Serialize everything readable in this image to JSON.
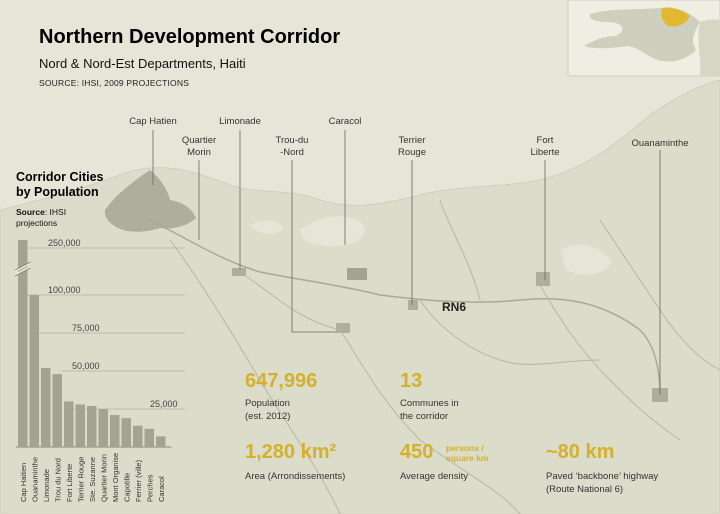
{
  "header": {
    "title": "Northern Development Corridor",
    "subtitle": "Nord & Nord-Est Departments, Haiti",
    "source": "SOURCE: IHSI, 2009 PROJECTIONS"
  },
  "map": {
    "road_label": "RN6",
    "cities": [
      {
        "id": "cap-haitien",
        "line1": "Cap Hatien",
        "line2": ""
      },
      {
        "id": "quartier-morin",
        "line1": "Quartier",
        "line2": "Morin"
      },
      {
        "id": "limonade",
        "line1": "Limonade",
        "line2": ""
      },
      {
        "id": "trou-du-nord",
        "line1": "Trou-du",
        "line2": "-Nord"
      },
      {
        "id": "caracol",
        "line1": "Caracol",
        "line2": ""
      },
      {
        "id": "terrier-rouge",
        "line1": "Terrier",
        "line2": "Rouge"
      },
      {
        "id": "fort-liberte",
        "line1": "Fort",
        "line2": "Liberte"
      },
      {
        "id": "ouanaminthe",
        "line1": "Ouanaminthe",
        "line2": ""
      }
    ],
    "colors": {
      "land": "#dcdccb",
      "sea": "#e6e6d8",
      "road": "#a9a99b",
      "urban": "#a3a391",
      "highlight": "#e2b830"
    }
  },
  "chart": {
    "title_line1": "Corridor Cities",
    "title_line2": "by Population",
    "source_label": "Source",
    "source_text": ": IHSI",
    "source_text2": "projections",
    "tick_labels": [
      "250,000",
      "100,000",
      "75,000",
      "50,000",
      "25,000"
    ]
  },
  "chart_data": {
    "type": "bar",
    "categories": [
      "Cap Haitien",
      "Ouanaminthe",
      "Limonade",
      "Trou du Nord",
      "Fort Liberte",
      "Terrier Rouge",
      "Ste. Suzanne",
      "Quartier Morin",
      "Mont Organise",
      "Capotille",
      "Ferrier (ville)",
      "Perches",
      "Caracol"
    ],
    "values": [
      265000,
      100000,
      52000,
      48000,
      30000,
      28000,
      27000,
      25000,
      21000,
      19000,
      14000,
      12000,
      7000
    ],
    "yticks": [
      25000,
      50000,
      75000,
      100000,
      250000
    ],
    "axis_break": true,
    "color": "#a3a391"
  },
  "stats": [
    {
      "id": "population",
      "value": "647,996",
      "line1": "Population",
      "line2": "(est. 2012)"
    },
    {
      "id": "communes",
      "value": "13",
      "line1": "Communes in",
      "line2": "the corridor"
    },
    {
      "id": "area",
      "value": "1,280 km²",
      "line1": "Area (Arrondissements)",
      "line2": ""
    },
    {
      "id": "density",
      "value": "450",
      "unit1": "persons /",
      "unit2": "square km",
      "line1": "Average density",
      "line2": ""
    },
    {
      "id": "highway",
      "value": "~80 km",
      "line1": "Paved ‘backbone’ highway",
      "line2": "(Route National 6)"
    }
  ]
}
